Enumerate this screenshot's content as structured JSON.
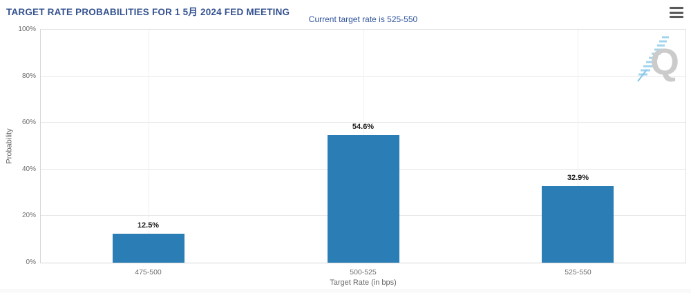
{
  "header": {
    "title": "TARGET RATE PROBABILITIES FOR 1 5月 2024 FED MEETING",
    "subtitle": "Current target rate is 525-550",
    "menu_icon": "hamburger-menu-icon"
  },
  "colors": {
    "bar": "#2b7db5",
    "title_text": "#34518f",
    "subtitle_text": "#30549b",
    "axis_text": "#666666",
    "gridline": "#e7e7e7",
    "watermark_q": "#c9c9c9",
    "watermark_dashes": "#9ed2ee"
  },
  "chart_data": {
    "type": "bar",
    "title": "TARGET RATE PROBABILITIES FOR 1 5月 2024 FED MEETING",
    "subtitle": "Current target rate is 525-550",
    "categories": [
      "475-500",
      "500-525",
      "525-550"
    ],
    "values": [
      12.5,
      54.6,
      32.9
    ],
    "value_labels": [
      "12.5%",
      "54.6%",
      "32.9%"
    ],
    "xlabel": "Target Rate (in bps)",
    "ylabel": "Probability",
    "ylim": [
      0,
      100
    ],
    "ytick_values": [
      0,
      20,
      40,
      60,
      80,
      100
    ],
    "ytick_labels": [
      "0%",
      "20%",
      "40%",
      "60%",
      "80%",
      "100%"
    ],
    "grid": "on",
    "legend": "none",
    "watermark_letter": "Q"
  }
}
